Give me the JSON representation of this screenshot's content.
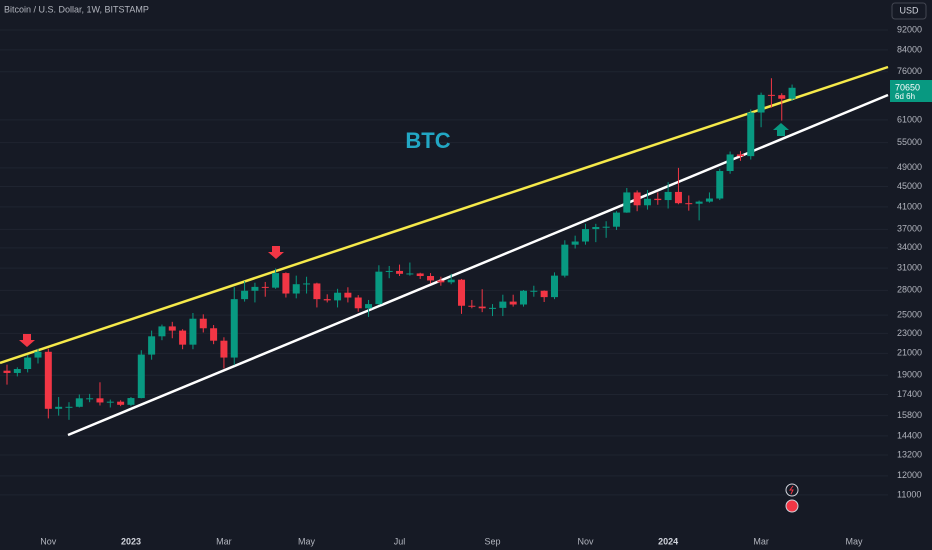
{
  "chart_data": {
    "type": "candlestick",
    "title": "Bitcoin / U.S. Dollar, 1W, BITSTAMP",
    "currency": "USD",
    "annotation": "BTC",
    "last_price": 70650,
    "countdown": "6d 6h",
    "up_color": "#089981",
    "down_color": "#f23645",
    "log_scale": true,
    "grid": true,
    "categories": [
      null,
      null,
      null,
      null,
      "Nov",
      null,
      null,
      null,
      null,
      null,
      null,
      null,
      "2023",
      null,
      null,
      null,
      null,
      null,
      null,
      null,
      null,
      "Mar",
      null,
      null,
      null,
      null,
      null,
      null,
      null,
      "May",
      null,
      null,
      null,
      null,
      null,
      null,
      null,
      null,
      "Jul",
      null,
      null,
      null,
      null,
      null,
      null,
      null,
      null,
      "Sep",
      null,
      null,
      null,
      null,
      null,
      null,
      null,
      null,
      "Nov",
      null,
      null,
      null,
      null,
      null,
      null,
      null,
      "2024",
      null,
      null,
      null,
      null,
      null,
      null,
      null,
      null,
      "Mar",
      null,
      null,
      null,
      null,
      null,
      null,
      null,
      null,
      "May",
      null,
      null,
      null
    ],
    "open": [
      19400,
      19200,
      19550,
      20600,
      21150,
      16300,
      16450,
      16450,
      17100,
      17100,
      16780,
      16840,
      16600,
      17120,
      20880,
      22700,
      23750,
      23300,
      21850,
      24600,
      23550,
      22250,
      20600,
      26900,
      27950,
      28450,
      28350,
      30300,
      27600,
      28800,
      28900,
      26900,
      26750,
      27700,
      27100,
      25800,
      26300,
      30500,
      30600,
      30200,
      30250,
      29900,
      29300,
      29050,
      29400,
      26100,
      26000,
      25800,
      25850,
      26600,
      26250,
      27950,
      27950,
      27150,
      29950,
      34500,
      35000,
      37050,
      37400,
      37450,
      39950,
      43800,
      41300,
      42550,
      42300,
      43900,
      41700,
      41600,
      42000,
      42600,
      48300,
      52100,
      51700,
      63100,
      68400,
      68300,
      67200,
      null,
      null,
      null,
      null,
      null,
      null,
      null,
      null,
      null
    ],
    "high": [
      19950,
      19700,
      20850,
      21450,
      21450,
      17200,
      16800,
      17400,
      17450,
      18400,
      17000,
      16950,
      17200,
      21300,
      23300,
      23950,
      24250,
      23450,
      25250,
      25100,
      23900,
      22600,
      28400,
      29200,
      29000,
      29100,
      30950,
      30400,
      29950,
      29800,
      29000,
      27500,
      28200,
      28400,
      27400,
      26800,
      31400,
      31300,
      31500,
      31800,
      30350,
      30300,
      29800,
      30200,
      29500,
      26800,
      28150,
      26300,
      27450,
      27450,
      28050,
      28600,
      28000,
      30400,
      35200,
      35950,
      37950,
      37950,
      38400,
      40200,
      44700,
      44200,
      44300,
      43800,
      45900,
      49000,
      43200,
      42200,
      43800,
      48800,
      52800,
      52900,
      64000,
      69100,
      73800,
      68900,
      71700,
      null,
      null,
      null,
      null,
      null,
      null,
      null,
      null,
      null
    ],
    "low": [
      18200,
      18900,
      19250,
      20050,
      15600,
      15800,
      15500,
      16400,
      16800,
      16550,
      16400,
      16500,
      16500,
      17100,
      20400,
      22300,
      22500,
      21400,
      21400,
      23100,
      21900,
      19600,
      19900,
      26600,
      26500,
      27200,
      28200,
      27100,
      27000,
      27600,
      25900,
      26500,
      25900,
      26500,
      25400,
      24800,
      26200,
      29600,
      29900,
      29950,
      29500,
      28900,
      28600,
      28800,
      25150,
      25800,
      25350,
      24900,
      24900,
      26000,
      26000,
      27200,
      26550,
      26900,
      29700,
      33900,
      34500,
      34900,
      35600,
      36900,
      39900,
      40200,
      40500,
      41400,
      40700,
      41500,
      40300,
      38550,
      41800,
      42300,
      47700,
      50600,
      50900,
      59000,
      64500,
      60800,
      66500,
      null,
      null,
      null,
      null,
      null,
      null,
      null,
      null,
      null
    ],
    "close": [
      19200,
      19550,
      20600,
      21150,
      16300,
      16450,
      16450,
      17100,
      17100,
      16780,
      16840,
      16600,
      17120,
      20880,
      22700,
      23750,
      23300,
      21850,
      24600,
      23550,
      22250,
      20600,
      26900,
      27950,
      28450,
      28350,
      30300,
      27600,
      28800,
      28900,
      26900,
      26750,
      27700,
      27100,
      25800,
      26300,
      30500,
      30600,
      30200,
      30250,
      29900,
      29300,
      29050,
      29400,
      26100,
      26000,
      25800,
      25850,
      26600,
      26250,
      27950,
      27950,
      27150,
      29950,
      34500,
      35000,
      37050,
      37400,
      37450,
      39950,
      43800,
      41300,
      42550,
      42300,
      43900,
      41700,
      41600,
      42000,
      42600,
      48300,
      52100,
      51700,
      63100,
      68400,
      68300,
      67200,
      70650,
      null,
      null,
      null,
      null,
      null,
      null,
      null,
      null,
      null
    ],
    "ylim": [
      9370,
      105500
    ],
    "yticks": [
      11000,
      12000,
      13200,
      14400,
      15800,
      17400,
      19000,
      21000,
      23000,
      25000,
      28000,
      31000,
      34000,
      37000,
      41000,
      45000,
      49000,
      55000,
      61000,
      76000,
      84000,
      92000
    ]
  }
}
